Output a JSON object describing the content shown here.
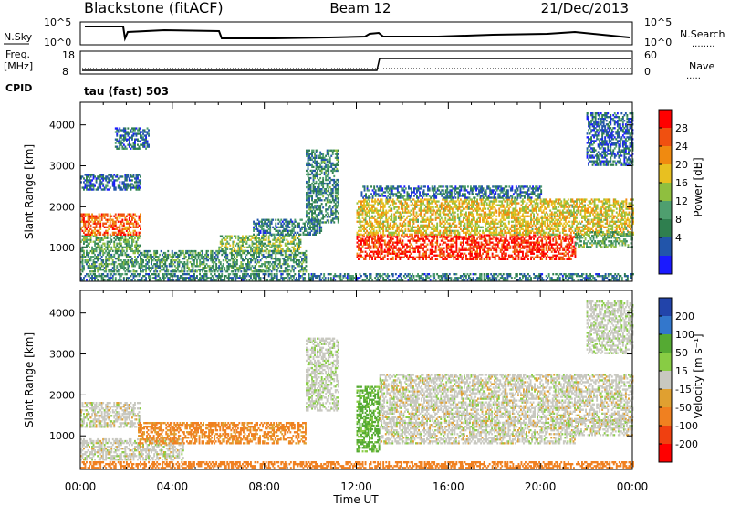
{
  "header": {
    "station": "Blackstone (fitACF)",
    "beam": "Beam 12",
    "date": "21/Dec/2013"
  },
  "top_panels": {
    "nsky_label": "N.Sky",
    "nsky_ticks": [
      "10^5",
      "10^0"
    ],
    "nsearch_label": "N.Search",
    "nsearch_ticks": [
      "10^5",
      "10^0"
    ],
    "freq_label": "Freq.",
    "freq_unit": "[MHz]",
    "freq_ticks": [
      "18",
      "8"
    ],
    "nave_label": "Nave",
    "nave_ticks": [
      "60",
      "0"
    ],
    "cpid_label": "CPID",
    "cpid_text": "tau (fast) 503"
  },
  "colors": {
    "power_scale": [
      "#1a1aff",
      "#2255aa",
      "#2f7f4f",
      "#4f9f6f",
      "#8fbf3f",
      "#e8c020",
      "#f08a10",
      "#f05010",
      "#ff0000"
    ],
    "velocity_scale": [
      "#2244aa",
      "#3377cc",
      "#55aa33",
      "#88cc44",
      "#c8c8c0",
      "#e0a030",
      "#f08020",
      "#f04010",
      "#ff0000"
    ]
  },
  "chart_data": [
    {
      "type": "heatmap",
      "name": "power",
      "xlabel": "",
      "ylabel": "Slant Range [km]",
      "xlim": [
        "00:00",
        "24:00"
      ],
      "ylim": [
        180,
        4550
      ],
      "yticks": [
        "1000",
        "2000",
        "3000",
        "4000"
      ],
      "colorbar_label": "Power [dB]",
      "colorbar_ticks": [
        "4",
        "8",
        "12",
        "16",
        "20",
        "24",
        "28"
      ],
      "colorbar_range": [
        0,
        30
      ],
      "bands": [
        {
          "t0": 0.0,
          "t1": 2.6,
          "r0": 900,
          "r1": 1300,
          "level": 12
        },
        {
          "t0": 0.0,
          "t1": 2.6,
          "r0": 1300,
          "r1": 1800,
          "level": 24
        },
        {
          "t0": 0.0,
          "t1": 2.6,
          "r0": 2400,
          "r1": 2800,
          "level": 6
        },
        {
          "t0": 0.0,
          "t1": 9.8,
          "r0": 400,
          "r1": 900,
          "level": 10
        },
        {
          "t0": 6.0,
          "t1": 9.6,
          "r0": 900,
          "r1": 1300,
          "level": 14
        },
        {
          "t0": 7.5,
          "t1": 10.5,
          "r0": 1300,
          "r1": 1700,
          "level": 8
        },
        {
          "t0": 9.8,
          "t1": 11.2,
          "r0": 1600,
          "r1": 3400,
          "level": 9
        },
        {
          "t0": 12.0,
          "t1": 21.5,
          "r0": 700,
          "r1": 1300,
          "level": 27
        },
        {
          "t0": 12.0,
          "t1": 24.0,
          "r0": 1300,
          "r1": 2200,
          "level": 18
        },
        {
          "t0": 12.2,
          "t1": 20.0,
          "r0": 2200,
          "r1": 2500,
          "level": 7
        },
        {
          "t0": 21.5,
          "t1": 24.0,
          "r0": 1000,
          "r1": 1400,
          "level": 12
        },
        {
          "t0": 22.0,
          "t1": 24.0,
          "r0": 3000,
          "r1": 4300,
          "level": 6
        },
        {
          "t0": 1.5,
          "t1": 3.0,
          "r0": 3400,
          "r1": 3900,
          "level": 7
        },
        {
          "t0": 0.0,
          "t1": 24.0,
          "r0": 200,
          "r1": 350,
          "level": 8
        }
      ]
    },
    {
      "type": "heatmap",
      "name": "velocity",
      "xlabel": "Time UT",
      "ylabel": "Slant Range [km]",
      "xlim": [
        "00:00",
        "24:00"
      ],
      "xticks": [
        "00:00",
        "04:00",
        "08:00",
        "12:00",
        "16:00",
        "20:00",
        "00:00"
      ],
      "ylim": [
        180,
        4550
      ],
      "yticks": [
        "1000",
        "2000",
        "3000",
        "4000"
      ],
      "colorbar_label": "Velocity [m s⁻¹]",
      "colorbar_ticks": [
        "200",
        "100",
        "50",
        "15",
        "-15",
        "-50",
        "-100",
        "-200"
      ],
      "bands": [
        {
          "t0": 0.0,
          "t1": 2.6,
          "r0": 1200,
          "r1": 1800,
          "level": 0
        },
        {
          "t0": 0.0,
          "t1": 4.5,
          "r0": 400,
          "r1": 900,
          "level": 0
        },
        {
          "t0": 2.5,
          "t1": 9.8,
          "r0": 800,
          "r1": 1300,
          "level": -60
        },
        {
          "t0": 9.8,
          "t1": 11.2,
          "r0": 1600,
          "r1": 3400,
          "level": 5
        },
        {
          "t0": 12.0,
          "t1": 13.0,
          "r0": 600,
          "r1": 2200,
          "level": 40
        },
        {
          "t0": 13.0,
          "t1": 21.5,
          "r0": 800,
          "r1": 1300,
          "level": 0
        },
        {
          "t0": 13.0,
          "t1": 24.0,
          "r0": 1300,
          "r1": 2500,
          "level": 0
        },
        {
          "t0": 21.5,
          "t1": 24.0,
          "r0": 1000,
          "r1": 1400,
          "level": 0
        },
        {
          "t0": 22.0,
          "t1": 24.0,
          "r0": 3000,
          "r1": 4300,
          "level": 5
        },
        {
          "t0": 0.0,
          "t1": 24.0,
          "r0": 200,
          "r1": 350,
          "level": -80
        }
      ]
    }
  ]
}
